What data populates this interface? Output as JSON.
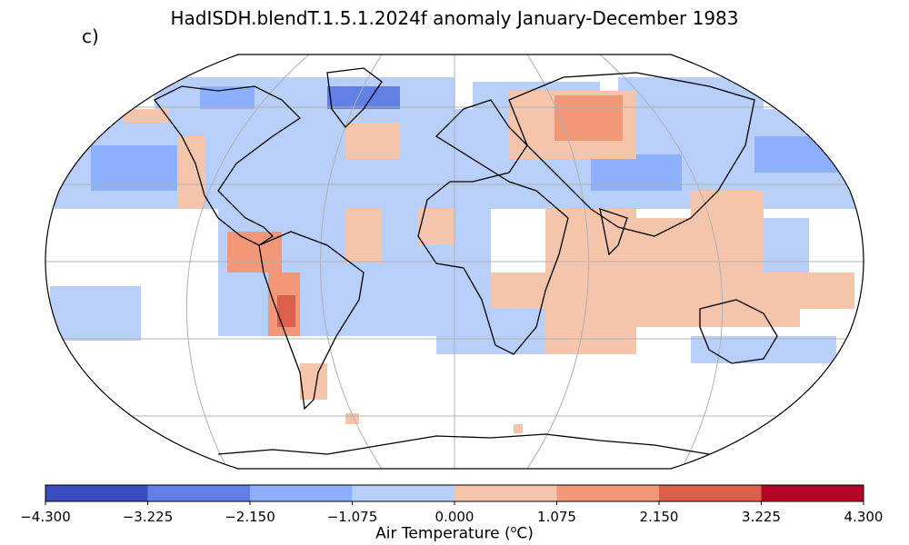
{
  "title": "HadISDH.blendT.1.5.1.2024f anomaly January-December 1983",
  "panel_label": "c)",
  "colorbar": {
    "label_prefix": "Air Temperature (",
    "label_sup": "o",
    "label_suffix": "C)",
    "ticks": [
      "−4.300",
      "−3.225",
      "−2.150",
      "−1.075",
      "0.000",
      "1.075",
      "2.150",
      "3.225",
      "4.300"
    ],
    "colors": [
      "#3a4cc0",
      "#6180e6",
      "#8db0fe",
      "#b7cff9",
      "#f4c4ab",
      "#f29879",
      "#dd5f4b",
      "#b40426"
    ]
  },
  "map": {
    "projection": "Robinson",
    "graticule_color": "#b0b0b0",
    "coast_color": "#000000"
  }
}
